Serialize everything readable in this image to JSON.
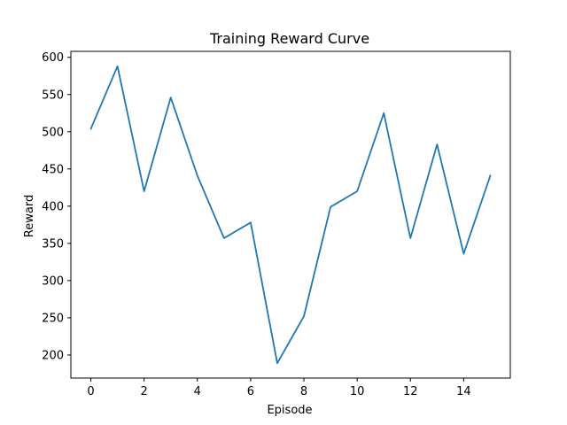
{
  "chart_data": {
    "type": "line",
    "title": "Training Reward Curve",
    "xlabel": "Episode",
    "ylabel": "Reward",
    "x": [
      0,
      1,
      2,
      3,
      4,
      5,
      6,
      7,
      8,
      9,
      10,
      11,
      12,
      13,
      14,
      15
    ],
    "series": [
      {
        "values": [
          504,
          588,
          420,
          546,
          441,
          357,
          378,
          189,
          252,
          399,
          420,
          525,
          357,
          483,
          336,
          441
        ],
        "color": "#1f77b4"
      }
    ],
    "xlim": [
      -0.75,
      15.75
    ],
    "ylim": [
      169,
      608
    ],
    "xticks": [
      0,
      2,
      4,
      6,
      8,
      10,
      12,
      14
    ],
    "yticks": [
      200,
      250,
      300,
      350,
      400,
      450,
      500,
      550,
      600
    ],
    "grid": false,
    "legend": "none"
  }
}
